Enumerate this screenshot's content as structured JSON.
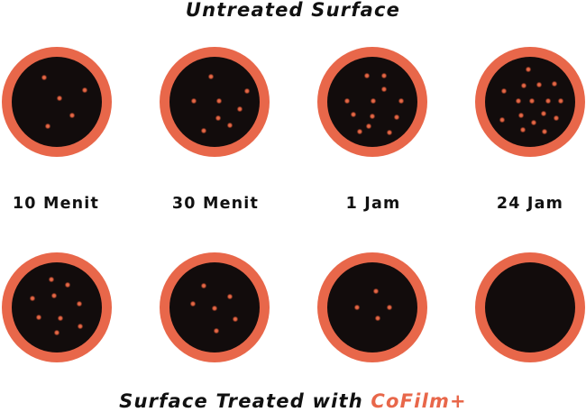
{
  "top_title": "Untreated Surface",
  "bottom_title_prefix": "Surface Treated with ",
  "bottom_title_brand": "CoFilm+",
  "time_labels": [
    "10 Menit",
    "30 Menit",
    "1 Jam",
    "24 Jam"
  ],
  "colors": {
    "rim": "#e8674a",
    "dish": "#120c0c",
    "colony": "#e2623f",
    "brand": "#e8674a",
    "text": "#111111"
  },
  "untreated_colony_counts": [
    5,
    8,
    12,
    16
  ],
  "treated_colony_counts": [
    9,
    6,
    4,
    0
  ]
}
